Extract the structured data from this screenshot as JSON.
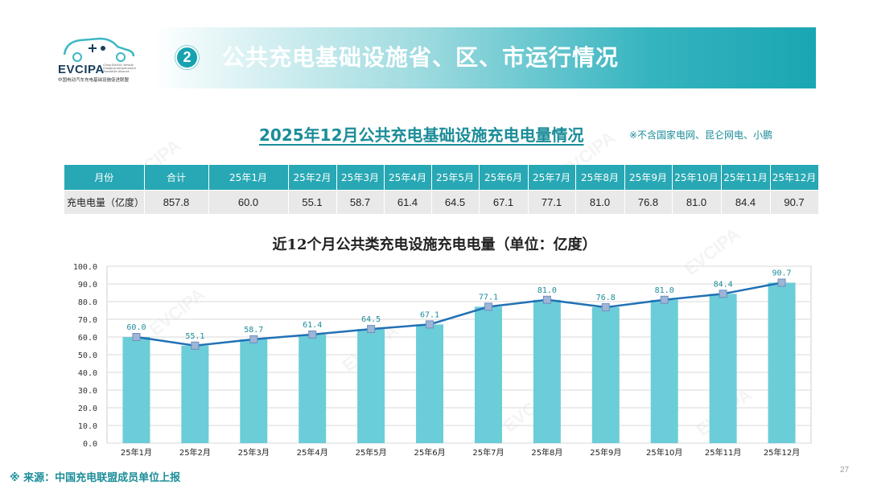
{
  "header": {
    "logo_text": "EVCIPA",
    "logo_subtitle": "中国电动汽车充电基础设施促进联盟",
    "logo_english": "China Electric Vehicle Charging Infrastructure Promotion Alliance",
    "section_number": "2",
    "section_title": "公共充电基础设施省、区、市运行情况"
  },
  "subtitle": "2025年12月公共充电基础设施充电电量情况",
  "note": "※不含国家电网、昆仑网电、小鹏",
  "table": {
    "header": [
      "月份",
      "合计",
      "25年1月",
      "25年2月",
      "25年3月",
      "25年4月",
      "25年5月",
      "25年6月",
      "25年7月",
      "25年8月",
      "25年9月",
      "25年10月",
      "25年11月",
      "25年12月"
    ],
    "row": [
      "充电电量（亿度）",
      "857.8",
      "60.0",
      "55.1",
      "58.7",
      "61.4",
      "64.5",
      "67.1",
      "77.1",
      "81.0",
      "76.8",
      "81.0",
      "84.4",
      "90.7"
    ]
  },
  "chart_title": "近12个月公共类充电设施充电电量（单位：亿度）",
  "chart_data": {
    "type": "bar",
    "categories": [
      "25年1月",
      "25年2月",
      "25年3月",
      "25年4月",
      "25年5月",
      "25年6月",
      "25年7月",
      "25年8月",
      "25年9月",
      "25年10月",
      "25年11月",
      "25年12月"
    ],
    "values": [
      60.0,
      55.1,
      58.7,
      61.4,
      64.5,
      67.1,
      77.1,
      81.0,
      76.8,
      81.0,
      84.4,
      90.7
    ],
    "value_labels": [
      "60.0",
      "55.1",
      "58.7",
      "61.4",
      "64.5",
      "67.1",
      "77.1",
      "81.0",
      "76.8",
      "81.0",
      "84.4",
      "90.7"
    ],
    "overlay": "line",
    "y_ticks": [
      "0.0",
      "10.0",
      "20.0",
      "30.0",
      "40.0",
      "50.0",
      "60.0",
      "70.0",
      "80.0",
      "90.0",
      "100.0"
    ],
    "ylim": [
      0,
      100
    ],
    "grid": true,
    "bar_color": "#6bcdd8",
    "line_color": "#2171b5",
    "marker_color": "#9fb5d6"
  },
  "watermark": "EVCIPA",
  "source": "※ 来源：中国充电联盟成员单位上报",
  "page_number": "27"
}
